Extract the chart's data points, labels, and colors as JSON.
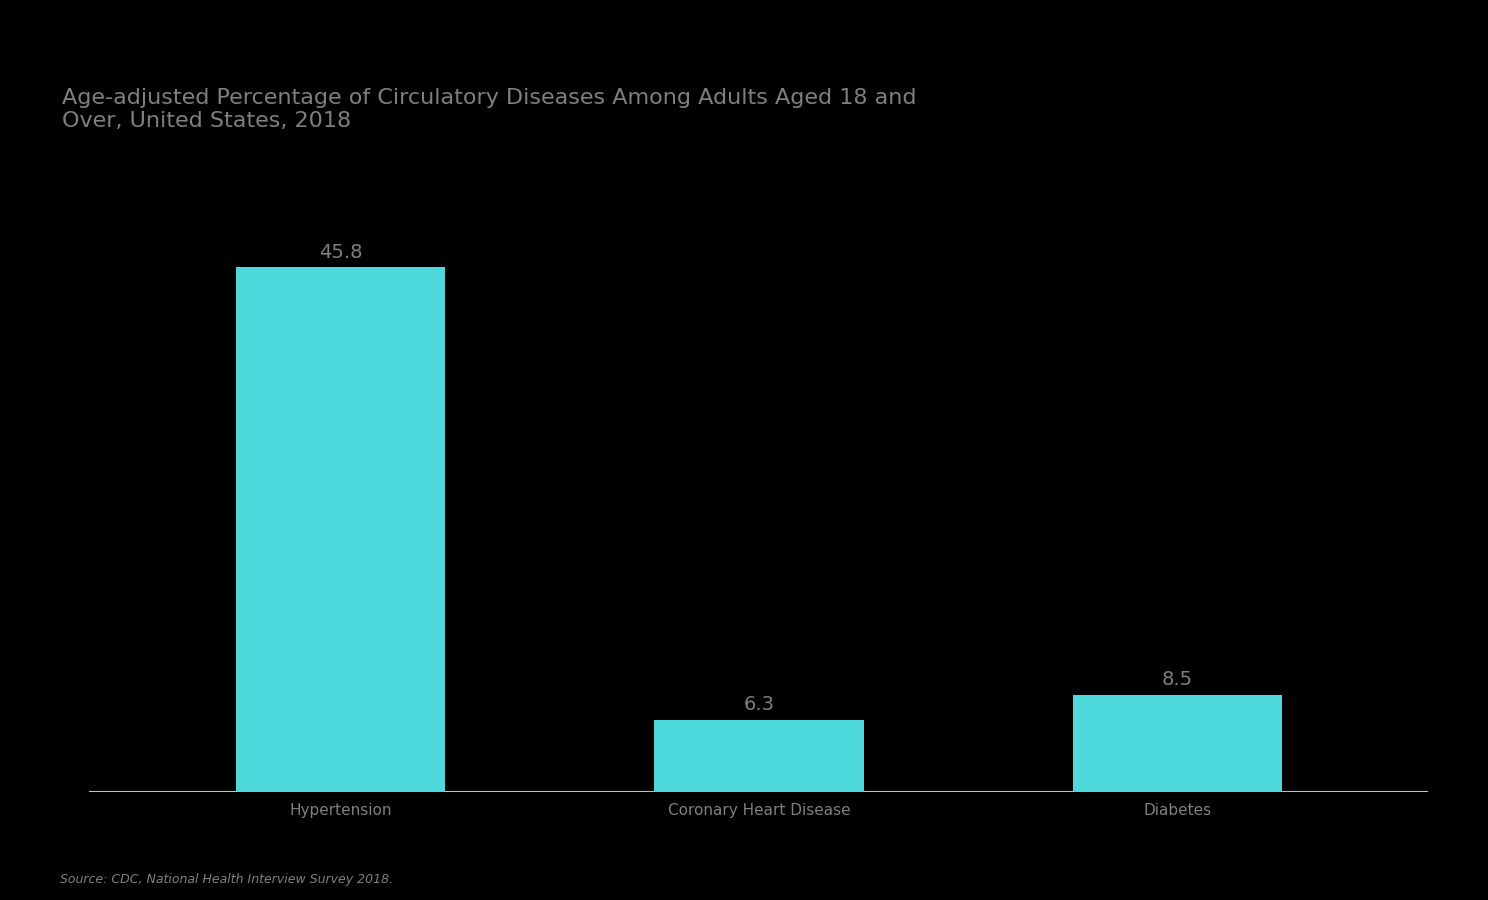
{
  "title_line1": "Age-adjusted Percentage of Circulatory Diseases Among Adults Aged 18 and",
  "title_line2": "Over, United States, 2018",
  "categories": [
    "Hypertension",
    "Coronary Heart Disease",
    "Diabetes"
  ],
  "values": [
    45.8,
    6.3,
    8.5
  ],
  "bar_color": "#4DD9DC",
  "background_color": "#000000",
  "text_color": "#7f7f7f",
  "title_color": "#7f7f7f",
  "source_text": "Source: CDC, National Health Interview Survey 2018.",
  "baseline_color": "#c0c0c0",
  "ylim": [
    0,
    55
  ],
  "bar_width": 0.5,
  "value_labels": [
    "45.8",
    "6.3",
    "8.5"
  ]
}
